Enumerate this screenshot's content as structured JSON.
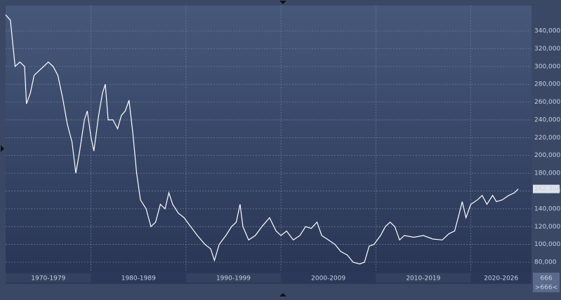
{
  "chart_data": {
    "type": "line",
    "series": [
      {
        "color": "#ffffff",
        "x": [
          1971.0,
          1971.5,
          1972,
          1972.5,
          1973,
          1973.2,
          1973.6,
          1974,
          1974.5,
          1975,
          1975.5,
          1976,
          1976.5,
          1977,
          1977.5,
          1978,
          1978.4,
          1978.8,
          1979.3,
          1979.6,
          1980,
          1980.3,
          1980.8,
          1981.2,
          1981.5,
          1981.8,
          1982.3,
          1982.8,
          1983.2,
          1983.6,
          1984,
          1984.4,
          1984.8,
          1985.2,
          1985.8,
          1986.3,
          1986.8,
          1987.3,
          1987.8,
          1988.2,
          1988.6,
          1989.2,
          1989.8,
          1990.5,
          1991.2,
          1992,
          1992.6,
          1993,
          1993.5,
          1994.2,
          1994.8,
          1995.3,
          1995.7,
          1996,
          1996.6,
          1997.3,
          1998,
          1998.8,
          1999.5,
          2000,
          2000.6,
          2001.3,
          2002,
          2002.6,
          2003.2,
          2003.8,
          2004.3,
          2005,
          2005.7,
          2006.3,
          2007,
          2007.6,
          2008.3,
          2008.8,
          2009.3,
          2009.8,
          2010.5,
          2011,
          2011.5,
          2012,
          2012.5,
          2013,
          2014,
          2015,
          2016,
          2017,
          2017.7,
          2018.3,
          2018.8,
          2019.1,
          2019.5,
          2020,
          2020.7,
          2021.2,
          2021.7,
          2022.3,
          2022.7,
          2023.3,
          2024,
          2024.6,
          2025
        ],
        "values": [
          358000,
          352000,
          300000,
          305000,
          300000,
          258000,
          270000,
          290000,
          295000,
          300000,
          305000,
          300000,
          290000,
          265000,
          235000,
          215000,
          180000,
          205000,
          240000,
          250000,
          220000,
          205000,
          245000,
          270000,
          280000,
          240000,
          240000,
          230000,
          245000,
          250000,
          262000,
          225000,
          180000,
          150000,
          140000,
          120000,
          125000,
          145000,
          140000,
          158000,
          145000,
          135000,
          130000,
          120000,
          110000,
          100000,
          95000,
          82000,
          100000,
          110000,
          120000,
          125000,
          145000,
          120000,
          105000,
          110000,
          120000,
          130000,
          115000,
          110000,
          115000,
          105000,
          110000,
          120000,
          118000,
          125000,
          110000,
          105000,
          100000,
          92000,
          88000,
          80000,
          78000,
          80000,
          98000,
          100000,
          110000,
          120000,
          125000,
          120000,
          105000,
          110000,
          108000,
          110000,
          106000,
          105000,
          112000,
          115000,
          135000,
          148000,
          130000,
          145000,
          150000,
          155000,
          145000,
          155000,
          148000,
          150000,
          155000,
          158000,
          162308
        ]
      }
    ],
    "last_value": {
      "value": 162308,
      "label": "162,308"
    },
    "xlim": [
      1971,
      2026.4
    ],
    "ylim": [
      69000,
      368400
    ],
    "yticks": [
      {
        "value": 80000,
        "label": "80,000"
      },
      {
        "value": 100000,
        "label": "100,000"
      },
      {
        "value": 120000,
        "label": "120,000"
      },
      {
        "value": 140000,
        "label": "140,000"
      },
      {
        "value": 160000,
        "label": "160,000"
      },
      {
        "value": 180000,
        "label": "180,000"
      },
      {
        "value": 200000,
        "label": "200,000"
      },
      {
        "value": 220000,
        "label": "220,000"
      },
      {
        "value": 240000,
        "label": "240,000"
      },
      {
        "value": 260000,
        "label": "260,000"
      },
      {
        "value": 280000,
        "label": "280,000"
      },
      {
        "value": 300000,
        "label": "300,000"
      },
      {
        "value": 320000,
        "label": "320,000"
      },
      {
        "value": 340000,
        "label": "340,000"
      }
    ],
    "x_bands": [
      {
        "label": "1970-1979",
        "from": 1970,
        "to": 1980
      },
      {
        "label": "1980-1989",
        "from": 1980,
        "to": 1990
      },
      {
        "label": "1990-1999",
        "from": 1990,
        "to": 2000
      },
      {
        "label": "2000-2009",
        "from": 2000,
        "to": 2010
      },
      {
        "label": "2010-2019",
        "from": 2010,
        "to": 2020
      },
      {
        "label": "2020-2026",
        "from": 2020,
        "to": 2026.4
      }
    ],
    "grid": true,
    "corner_labels": [
      "666",
      ">666<"
    ]
  }
}
